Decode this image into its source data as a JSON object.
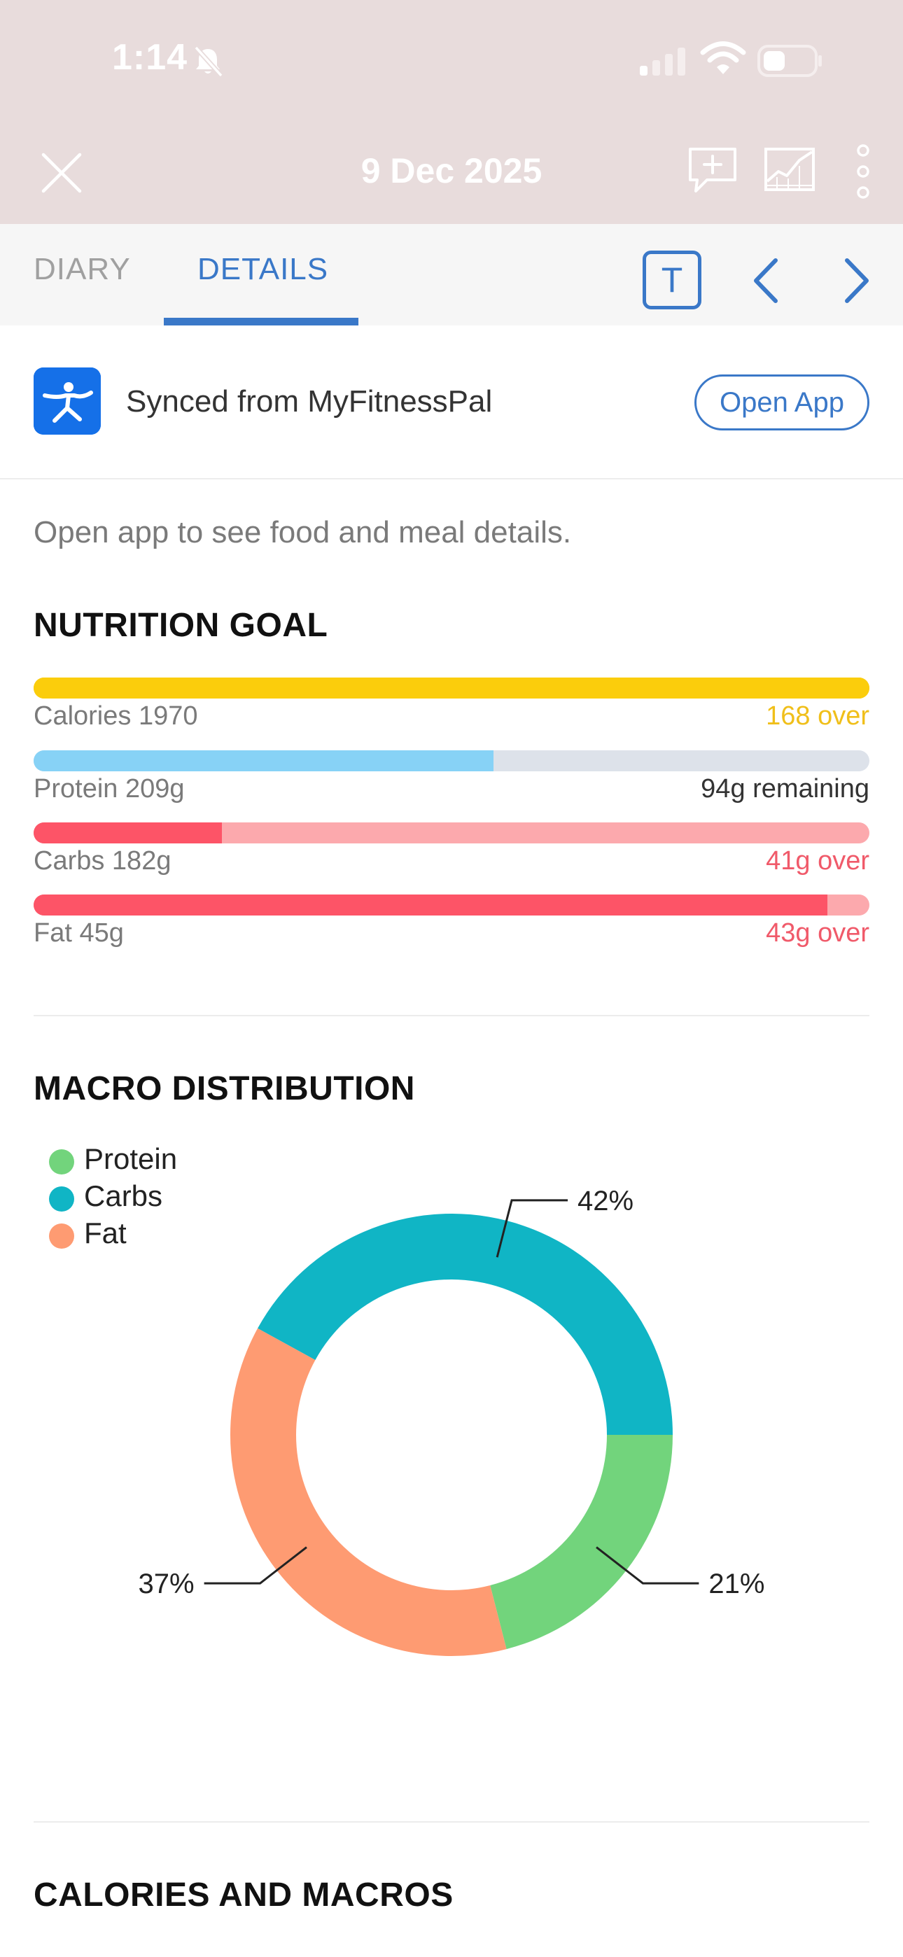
{
  "status_bar": {
    "time": "1:14"
  },
  "header": {
    "date": "9 Dec 2025"
  },
  "tabs": [
    {
      "label": "DIARY",
      "active": false
    },
    {
      "label": "DETAILS",
      "active": true
    }
  ],
  "toolbar": {
    "text_button_label": "T"
  },
  "sync": {
    "text": "Synced from MyFitnessPal",
    "button_label": "Open App"
  },
  "info_text": "Open app to see food and meal details.",
  "nutrition_goal": {
    "title": "NUTRITION GOAL",
    "bars": [
      {
        "label": "Calories 1970",
        "status": "168 over",
        "fill_fraction": 1.0,
        "fill_color": "#fbcd0c",
        "track_color": "#fbcd0c",
        "status_color": "#f0bf1a"
      },
      {
        "label": "Protein 209g",
        "status": "94g remaining",
        "fill_fraction": 0.55,
        "fill_color": "#87d2f6",
        "track_color": "#dde2ea",
        "status_color": "#333333"
      },
      {
        "label": "Carbs 182g",
        "status": "41g over",
        "fill_fraction": 0.225,
        "fill_color": "#fd5467",
        "track_color": "#fca9ad",
        "status_color": "#f05a6a"
      },
      {
        "label": "Fat 45g",
        "status": "43g over",
        "fill_fraction": 0.95,
        "fill_color": "#fd5467",
        "track_color": "#fca9ad",
        "status_color": "#f05a6a"
      }
    ]
  },
  "macro_distribution": {
    "title": "MACRO DISTRIBUTION"
  },
  "chart_data": {
    "type": "pie",
    "donut": true,
    "legend_position": "top-left",
    "categories": [
      "Protein",
      "Carbs",
      "Fat"
    ],
    "values": [
      21,
      42,
      37
    ],
    "labels": [
      "21%",
      "42%",
      "37%"
    ],
    "colors": [
      "#72d47c",
      "#10b5c5",
      "#fe9b72"
    ]
  },
  "calories_and_macros": {
    "title": "CALORIES AND MACROS"
  }
}
